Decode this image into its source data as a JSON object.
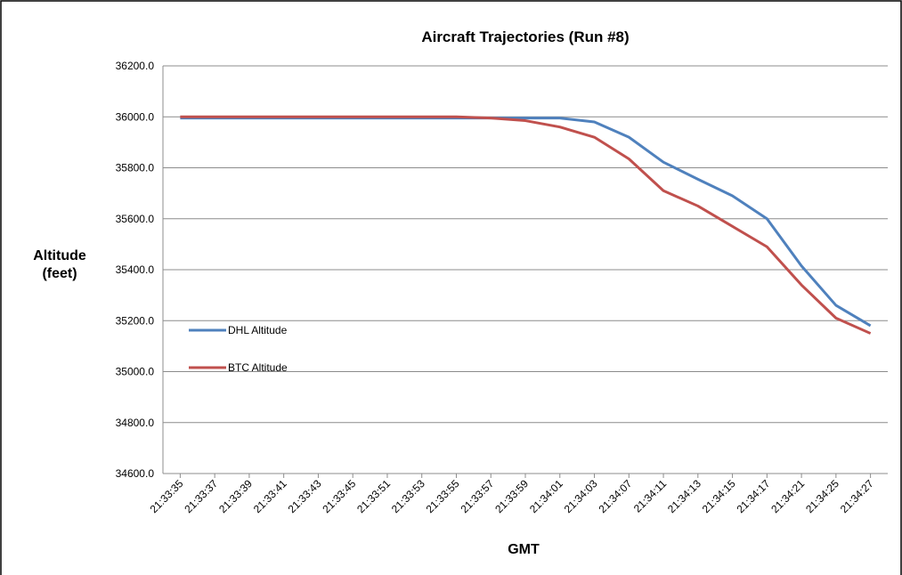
{
  "chart_data": {
    "type": "line",
    "title": "Aircraft Trajectories (Run #8)",
    "x_label": "GMT",
    "y_label": "Altitude (feet)",
    "categories": [
      "21:33:35",
      "21:33:37",
      "21:33:39",
      "21:33:41",
      "21:33:43",
      "21:33:45",
      "21:33:51",
      "21:33:53",
      "21:33:55",
      "21:33:57",
      "21:33:59",
      "21:34:01",
      "21:34:03",
      "21:34:07",
      "21:34:11",
      "21:34:13",
      "21:34:15",
      "21:34:17",
      "21:34:21",
      "21:34:25",
      "21:34:27"
    ],
    "series": [
      {
        "name": "DHL Altitude",
        "color": "#4f81bd",
        "values": [
          35995,
          35995,
          35995,
          35995,
          35995,
          35995,
          35995,
          35995,
          35995,
          35995,
          35995,
          35995,
          35980,
          35920,
          35822,
          35755,
          35690,
          35600,
          35415,
          35260,
          35180
        ]
      },
      {
        "name": "BTC Altitude",
        "color": "#c0504d",
        "values": [
          36000,
          36000,
          36000,
          36000,
          36000,
          36000,
          36000,
          36000,
          36000,
          35995,
          35985,
          35960,
          35920,
          35835,
          35710,
          35650,
          35570,
          35490,
          35340,
          35210,
          35150
        ]
      }
    ],
    "ylim": [
      34600,
      36200
    ],
    "yticks": [
      {
        "value": 34600,
        "label": "34600.0"
      },
      {
        "value": 34800,
        "label": "34800.0"
      },
      {
        "value": 35000,
        "label": "35000.0"
      },
      {
        "value": 35200,
        "label": "35200.0"
      },
      {
        "value": 35400,
        "label": "35400.0"
      },
      {
        "value": 35600,
        "label": "35600.0"
      },
      {
        "value": 35800,
        "label": "35800.0"
      },
      {
        "value": 36000,
        "label": "36000.0"
      },
      {
        "value": 36200,
        "label": "36200.0"
      }
    ],
    "grid": true,
    "legend": "left"
  }
}
